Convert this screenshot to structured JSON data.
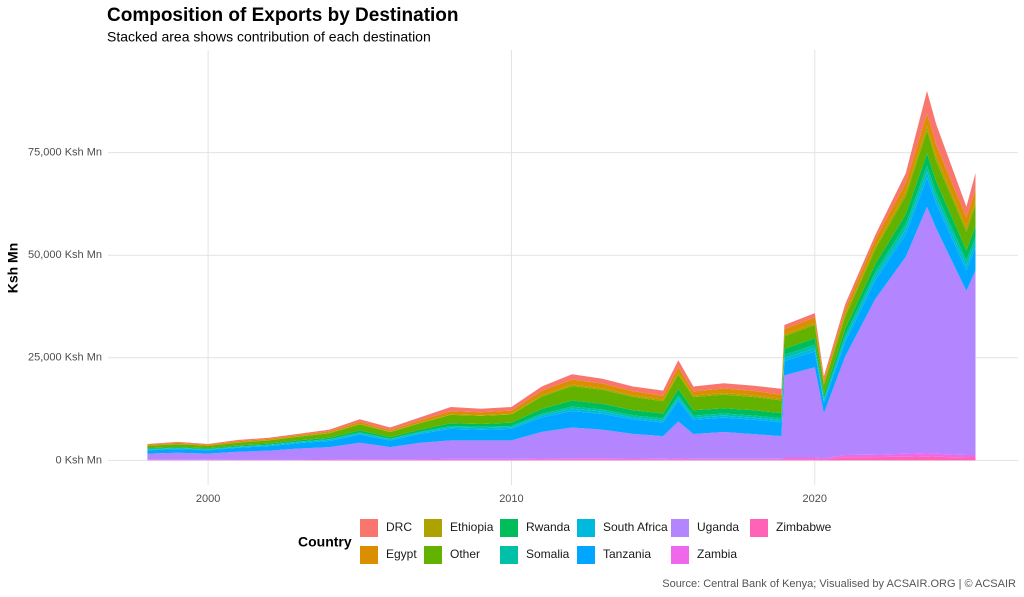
{
  "chart_data": {
    "type": "area",
    "stacked": true,
    "title": "Composition of Exports by Destination",
    "subtitle": "Stacked area shows contribution of each destination",
    "y_label": "Ksh Mn",
    "legend_title": "Country",
    "legend_position": "bottom",
    "caption": "Source: Central Bank of Kenya; Visualised by ACSAIR.ORG | © ACSAIR",
    "grid": true,
    "xlim": [
      1996.7,
      2026.7
    ],
    "xticks": [
      2000,
      2010,
      2020
    ],
    "ylim": [
      -6000,
      100000
    ],
    "yticks": [
      {
        "value": 0,
        "label": "0 Ksh Mn"
      },
      {
        "value": 25000,
        "label": "25,000 Ksh Mn"
      },
      {
        "value": 50000,
        "label": "50,000 Ksh Mn"
      },
      {
        "value": 75000,
        "label": "75,000 Ksh Mn"
      }
    ],
    "x": [
      1998,
      1999,
      2000,
      2001,
      2002,
      2003,
      2004,
      2005,
      2006,
      2007,
      2008,
      2009,
      2010,
      2011,
      2012,
      2013,
      2014,
      2015,
      2015.5,
      2016,
      2017,
      2018,
      2018.9,
      2019,
      2020,
      2020.3,
      2021,
      2022,
      2023,
      2023.7,
      2024,
      2025,
      2025.3
    ],
    "series": [
      {
        "name": "DRC",
        "color": "#F8766D",
        "values": [
          200,
          200,
          200,
          300,
          260,
          300,
          390,
          600,
          640,
          700,
          980,
          880,
          880,
          1050,
          1300,
          1200,
          1140,
          1280,
          1700,
          1180,
          1280,
          1290,
          1440,
          1000,
          1000,
          900,
          1200,
          1100,
          2300,
          5500,
          5100,
          2600,
          4000
        ]
      },
      {
        "name": "Egypt",
        "color": "#DB8E00",
        "values": [
          200,
          300,
          200,
          300,
          300,
          330,
          400,
          500,
          400,
          600,
          800,
          700,
          800,
          1100,
          1200,
          1100,
          1000,
          900,
          1300,
          1000,
          1100,
          1100,
          1000,
          1300,
          1400,
          800,
          1200,
          1700,
          2300,
          3000,
          2800,
          2500,
          2700
        ]
      },
      {
        "name": "Ethiopia",
        "color": "#AEA200",
        "values": [
          50,
          50,
          50,
          60,
          60,
          70,
          80,
          100,
          80,
          100,
          150,
          150,
          150,
          300,
          400,
          400,
          400,
          400,
          500,
          400,
          400,
          400,
          400,
          500,
          500,
          400,
          600,
          700,
          900,
          1200,
          1100,
          1000,
          1100
        ]
      },
      {
        "name": "Other",
        "color": "#64B200",
        "values": [
          600,
          700,
          600,
          700,
          800,
          900,
          1100,
          1500,
          1200,
          1600,
          2000,
          2000,
          2000,
          3000,
          3500,
          3400,
          3200,
          3000,
          3500,
          3200,
          3300,
          3200,
          3100,
          3000,
          3200,
          2300,
          3000,
          3600,
          4500,
          5500,
          5000,
          4500,
          5000
        ]
      },
      {
        "name": "Rwanda",
        "color": "#00BD5C",
        "values": [
          200,
          200,
          200,
          250,
          250,
          300,
          350,
          500,
          400,
          500,
          700,
          700,
          800,
          1200,
          1500,
          1400,
          1300,
          1200,
          1600,
          1300,
          1300,
          1300,
          1200,
          1500,
          1600,
          1000,
          1500,
          2000,
          2500,
          3000,
          2800,
          2500,
          2800
        ]
      },
      {
        "name": "Somalia",
        "color": "#00C1A7",
        "values": [
          100,
          100,
          100,
          100,
          100,
          150,
          150,
          200,
          150,
          200,
          300,
          300,
          300,
          400,
          500,
          500,
          500,
          500,
          600,
          500,
          500,
          500,
          500,
          800,
          900,
          600,
          900,
          1000,
          1200,
          1500,
          1300,
          1200,
          1300
        ]
      },
      {
        "name": "South Africa",
        "color": "#00BADE",
        "values": [
          200,
          200,
          200,
          200,
          250,
          250,
          300,
          300,
          300,
          300,
          400,
          400,
          400,
          500,
          600,
          600,
          500,
          500,
          700,
          500,
          500,
          500,
          500,
          700,
          800,
          500,
          800,
          1000,
          1200,
          1500,
          1300,
          1200,
          1300
        ]
      },
      {
        "name": "Tanzania",
        "color": "#00A6FF",
        "values": [
          800,
          900,
          800,
          1000,
          1100,
          1300,
          1500,
          2000,
          1600,
          2200,
          2800,
          2600,
          2800,
          3500,
          4000,
          3800,
          3500,
          3300,
          5000,
          3500,
          3500,
          3500,
          3400,
          3500,
          3800,
          2500,
          3500,
          4500,
          5500,
          7000,
          6000,
          5000,
          5500
        ]
      },
      {
        "name": "Uganda",
        "color": "#B385FF",
        "values": [
          1500,
          1700,
          1500,
          1900,
          2200,
          2700,
          3000,
          4000,
          3000,
          4000,
          4500,
          4500,
          4500,
          6500,
          7500,
          7000,
          6000,
          5500,
          9000,
          6000,
          6500,
          6000,
          5500,
          20000,
          22000,
          11000,
          24000,
          38000,
          48000,
          60000,
          55000,
          40000,
          45000
        ]
      },
      {
        "name": "Zambia",
        "color": "#EF67EB",
        "values": [
          100,
          100,
          100,
          120,
          120,
          130,
          150,
          200,
          150,
          200,
          250,
          250,
          250,
          300,
          300,
          300,
          280,
          250,
          300,
          250,
          250,
          250,
          250,
          400,
          400,
          300,
          500,
          600,
          700,
          800,
          700,
          600,
          600
        ]
      },
      {
        "name": "Zimbabwe",
        "color": "#FF63B6",
        "values": [
          50,
          50,
          50,
          60,
          60,
          70,
          80,
          100,
          80,
          100,
          120,
          120,
          120,
          150,
          200,
          200,
          180,
          170,
          200,
          170,
          170,
          160,
          160,
          300,
          300,
          200,
          800,
          800,
          900,
          1000,
          900,
          700,
          700
        ]
      }
    ]
  }
}
